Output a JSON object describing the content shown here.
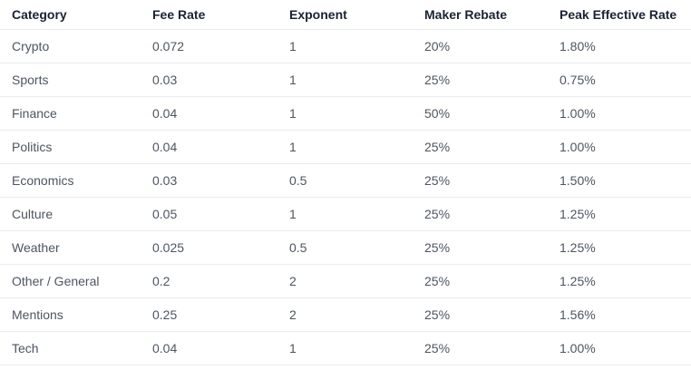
{
  "chart_data": {
    "type": "table",
    "title": "",
    "columns": [
      "Category",
      "Fee Rate",
      "Exponent",
      "Maker Rebate",
      "Peak Effective Rate"
    ],
    "rows": [
      [
        "Crypto",
        "0.072",
        "1",
        "20%",
        "1.80%"
      ],
      [
        "Sports",
        "0.03",
        "1",
        "25%",
        "0.75%"
      ],
      [
        "Finance",
        "0.04",
        "1",
        "50%",
        "1.00%"
      ],
      [
        "Politics",
        "0.04",
        "1",
        "25%",
        "1.00%"
      ],
      [
        "Economics",
        "0.03",
        "0.5",
        "25%",
        "1.50%"
      ],
      [
        "Culture",
        "0.05",
        "1",
        "25%",
        "1.25%"
      ],
      [
        "Weather",
        "0.025",
        "0.5",
        "25%",
        "1.25%"
      ],
      [
        "Other / General",
        "0.2",
        "2",
        "25%",
        "1.25%"
      ],
      [
        "Mentions",
        "0.25",
        "2",
        "25%",
        "1.56%"
      ],
      [
        "Tech",
        "0.04",
        "1",
        "25%",
        "1.00%"
      ]
    ]
  },
  "colors": {
    "header_text": "#1a2233",
    "body_text": "#4d5560",
    "divider": "#e9ebee",
    "background": "#ffffff"
  }
}
